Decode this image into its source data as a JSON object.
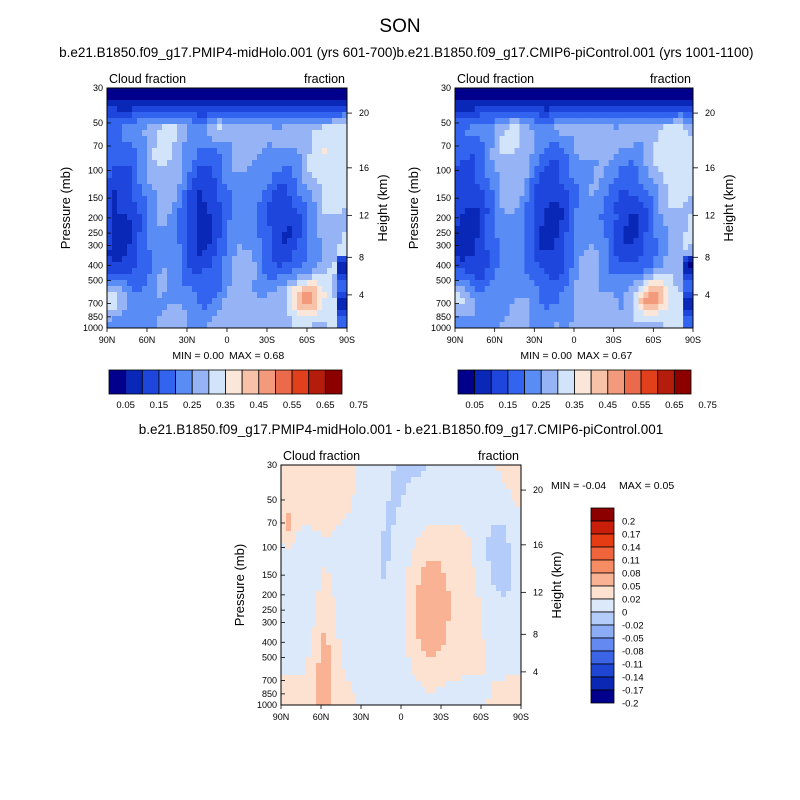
{
  "figure": {
    "title": "SON"
  },
  "chart_data": [
    {
      "type": "heatmap",
      "title": "b.e21.B1850.f09_g17.PMIP4-midHolo.001 (yrs 601-700)",
      "left_label": "Cloud fraction",
      "right_label": "fraction",
      "xlabel": "",
      "ylabel": "Pressure (mb)",
      "ylabel_right": "Height (km)",
      "x_ticks": [
        "90N",
        "60N",
        "30N",
        "0",
        "30S",
        "60S",
        "90S"
      ],
      "y_ticks": [
        30,
        50,
        70,
        100,
        150,
        200,
        250,
        300,
        400,
        500,
        700,
        850,
        1000
      ],
      "y_right_ticks": [
        20,
        16,
        12,
        8,
        4
      ],
      "min_text": "MIN =   0.00",
      "max_text": "MAX =   0.68",
      "min": 0.0,
      "max": 0.68,
      "colorbar_labels": [
        "0.05",
        "0.15",
        "0.25",
        "0.35",
        "0.45",
        "0.55",
        "0.65",
        "0.75"
      ]
    },
    {
      "type": "heatmap",
      "title": "b.e21.B1850.f09_g17.CMIP6-piControl.001 (yrs 1001-1100)",
      "left_label": "Cloud fraction",
      "right_label": "fraction",
      "xlabel": "",
      "ylabel": "Pressure (mb)",
      "ylabel_right": "Height (km)",
      "x_ticks": [
        "90N",
        "60N",
        "30N",
        "0",
        "30S",
        "60S",
        "90S"
      ],
      "y_ticks": [
        30,
        50,
        70,
        100,
        150,
        200,
        250,
        300,
        400,
        500,
        700,
        850,
        1000
      ],
      "y_right_ticks": [
        20,
        16,
        12,
        8,
        4
      ],
      "min_text": "MIN =   0.00",
      "max_text": "MAX =   0.67",
      "min": 0.0,
      "max": 0.67,
      "colorbar_labels": [
        "0.05",
        "0.15",
        "0.25",
        "0.35",
        "0.45",
        "0.55",
        "0.65",
        "0.75"
      ]
    },
    {
      "type": "heatmap",
      "title": "b.e21.B1850.f09_g17.PMIP4-midHolo.001 - b.e21.B1850.f09_g17.CMIP6-piControl.001",
      "left_label": "Cloud fraction",
      "right_label": "fraction",
      "xlabel": "",
      "ylabel": "Pressure (mb)",
      "ylabel_right": "Height (km)",
      "x_ticks": [
        "90N",
        "60N",
        "30N",
        "0",
        "30S",
        "60S",
        "90S"
      ],
      "y_ticks": [
        30,
        50,
        70,
        100,
        150,
        200,
        250,
        300,
        400,
        500,
        700,
        850,
        1000
      ],
      "y_right_ticks": [
        20,
        16,
        12,
        8,
        4
      ],
      "min_text": "MIN =  -0.04",
      "max_text": "MAX =   0.05",
      "min": -0.04,
      "max": 0.05,
      "colorbar_labels": [
        "0.2",
        "0.17",
        "0.14",
        "0.11",
        "0.08",
        "0.05",
        "0.02",
        "0",
        "-0.02",
        "-0.05",
        "-0.08",
        "-0.11",
        "-0.14",
        "-0.17",
        "-0.2"
      ]
    }
  ],
  "colors": {
    "seq": [
      "#00008c",
      "#0a28b8",
      "#1e46dc",
      "#3264f0",
      "#5a8cf5",
      "#96b4f5",
      "#d2e4fa",
      "#fbe7d9",
      "#f7c2a8",
      "#f39a7d",
      "#ec6a4c",
      "#e0401c",
      "#b41c0c",
      "#8c0000"
    ],
    "diff": [
      "#8c0000",
      "#c81e0a",
      "#e63c14",
      "#f0643c",
      "#f58c64",
      "#f9b294",
      "#fde2d2",
      "#dce9fa",
      "#b4ccfa",
      "#8cacf5",
      "#6489f0",
      "#3c64e6",
      "#1e46d2",
      "#0a28b4",
      "#00008c"
    ]
  }
}
